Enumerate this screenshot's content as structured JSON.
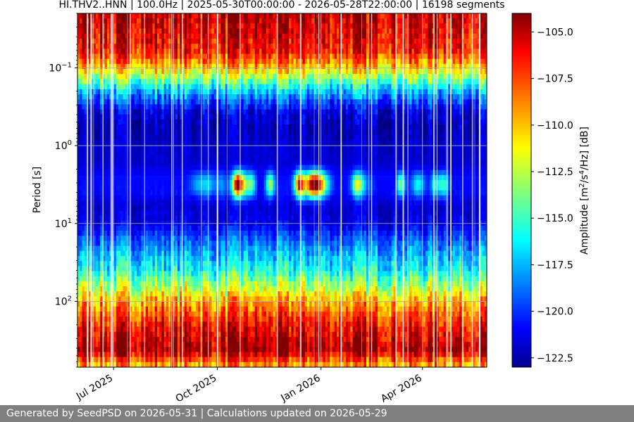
{
  "footer": {
    "text": "Generated by SeedPSD on 2026-05-31 | Calculations updated on 2026-05-29"
  },
  "chart_data": {
    "type": "heatmap",
    "title": "HI.THV2..HNN | 100.0Hz | 2025-05-30T00:00:00 - 2026-05-28T22:00:00 | 16198 segments",
    "xlabel": "",
    "ylabel": "Period [s]",
    "x_ticks": [
      "Jul 2025",
      "Oct 2025",
      "Jan 2026",
      "Apr 2026"
    ],
    "x_range": [
      "2025-05-30",
      "2026-05-28"
    ],
    "y_scale": "log",
    "y_range": [
      0.02,
      700
    ],
    "y_ticks": [
      "10^-1",
      "10^0",
      "10^1",
      "10^2"
    ],
    "grid": true,
    "colorbar": {
      "label": "Amplitude [m^2/s^4/Hz] [dB]",
      "label_parts": {
        "base": "Amplitude [m",
        "e1": "2",
        "mid": "/s",
        "e2": "4",
        "tail": "/Hz] [dB]"
      },
      "min": -123.0,
      "max": -104.0,
      "ticks": [
        "-105.0",
        "-107.5",
        "-110.0",
        "-112.5",
        "-115.0",
        "-117.5",
        "-120.0",
        "-122.5"
      ],
      "colormap": "jet"
    },
    "profile": {
      "period_s": [
        0.02,
        0.06,
        0.1,
        0.2,
        0.35,
        0.6,
        1,
        1.7,
        2.5,
        4,
        6,
        10,
        20,
        40,
        70,
        100,
        200,
        420,
        700
      ],
      "amplitude_db": [
        -105.0,
        -106.5,
        -110.0,
        -117.0,
        -121.0,
        -122.0,
        -121.5,
        -121.5,
        -120.5,
        -120.5,
        -121.5,
        -121.0,
        -118.0,
        -115.5,
        -112.0,
        -109.5,
        -106.5,
        -104.5,
        -110.0
      ]
    },
    "note_features": {
      "microseism_peak_period_s": [
        2,
        6
      ],
      "microseism_peak_months": [
        "Oct 2025",
        "Nov 2025",
        "Dec 2025",
        "Jan 2026",
        "Feb 2026",
        "Mar 2026",
        "Apr 2026"
      ]
    }
  }
}
